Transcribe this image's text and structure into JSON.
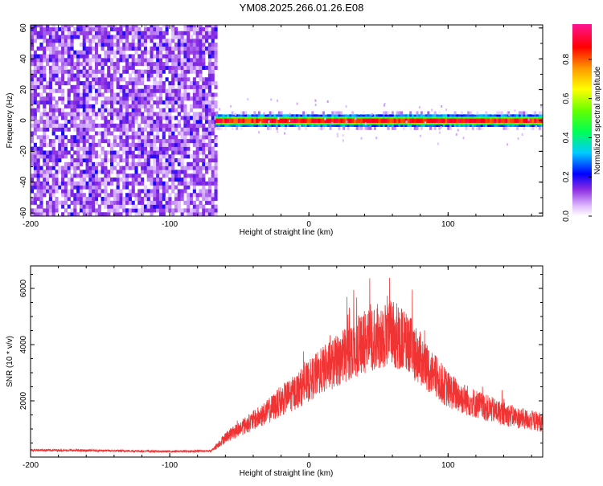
{
  "title": "YM08.2025.266.01.26.E08",
  "chart_data": [
    {
      "type": "heatmap",
      "xlabel": "Height of straight line (km)",
      "ylabel": "Frequency (Hz)",
      "xlim": [
        -200,
        168
      ],
      "ylim": [
        -62,
        62
      ],
      "xticks": [
        -200,
        -100,
        0,
        100
      ],
      "yticks": [
        60,
        40,
        20,
        0,
        -20,
        -40,
        -60
      ],
      "colorbar": {
        "label": "Normalized spectral amplitude",
        "range": [
          0.0,
          0.98
        ],
        "ticks": [
          0.0,
          0.2,
          0.4,
          0.6,
          0.8
        ],
        "tick_labels": [
          "0.0",
          "0.2",
          "0.4",
          "0.6",
          "0.8"
        ]
      },
      "regions": [
        {
          "x_start": -200,
          "x_end": -67,
          "description": "broadband noise, low amplitude (0.1-0.3)",
          "freq_range": [
            -62,
            62
          ]
        },
        {
          "x_start": -67,
          "x_end": 168,
          "description": "narrow band centered at 0 Hz, amplitude 0.8-0.95",
          "freq_range": [
            -5,
            5
          ]
        }
      ]
    },
    {
      "type": "line",
      "xlabel": "Height of straight line (km)",
      "ylabel": "SNR (10 * v/v)",
      "xlim": [
        -200,
        168
      ],
      "ylim": [
        0,
        6800
      ],
      "xticks": [
        -200,
        -100,
        0,
        100
      ],
      "yticks": [
        2000,
        4000,
        6000
      ],
      "series_color": "#f03434",
      "envelope_x": [
        -200,
        -150,
        -100,
        -70,
        -60,
        -50,
        -40,
        -30,
        -20,
        -10,
        0,
        10,
        20,
        30,
        40,
        50,
        60,
        70,
        80,
        90,
        100,
        110,
        120,
        130,
        140,
        150,
        160,
        168
      ],
      "envelope_y": [
        250,
        230,
        200,
        220,
        700,
        1000,
        1300,
        1600,
        2000,
        2300,
        2700,
        3100,
        3400,
        3800,
        4100,
        4300,
        4400,
        4100,
        3500,
        2900,
        2400,
        2100,
        1900,
        1700,
        1550,
        1400,
        1300,
        1250
      ]
    }
  ]
}
